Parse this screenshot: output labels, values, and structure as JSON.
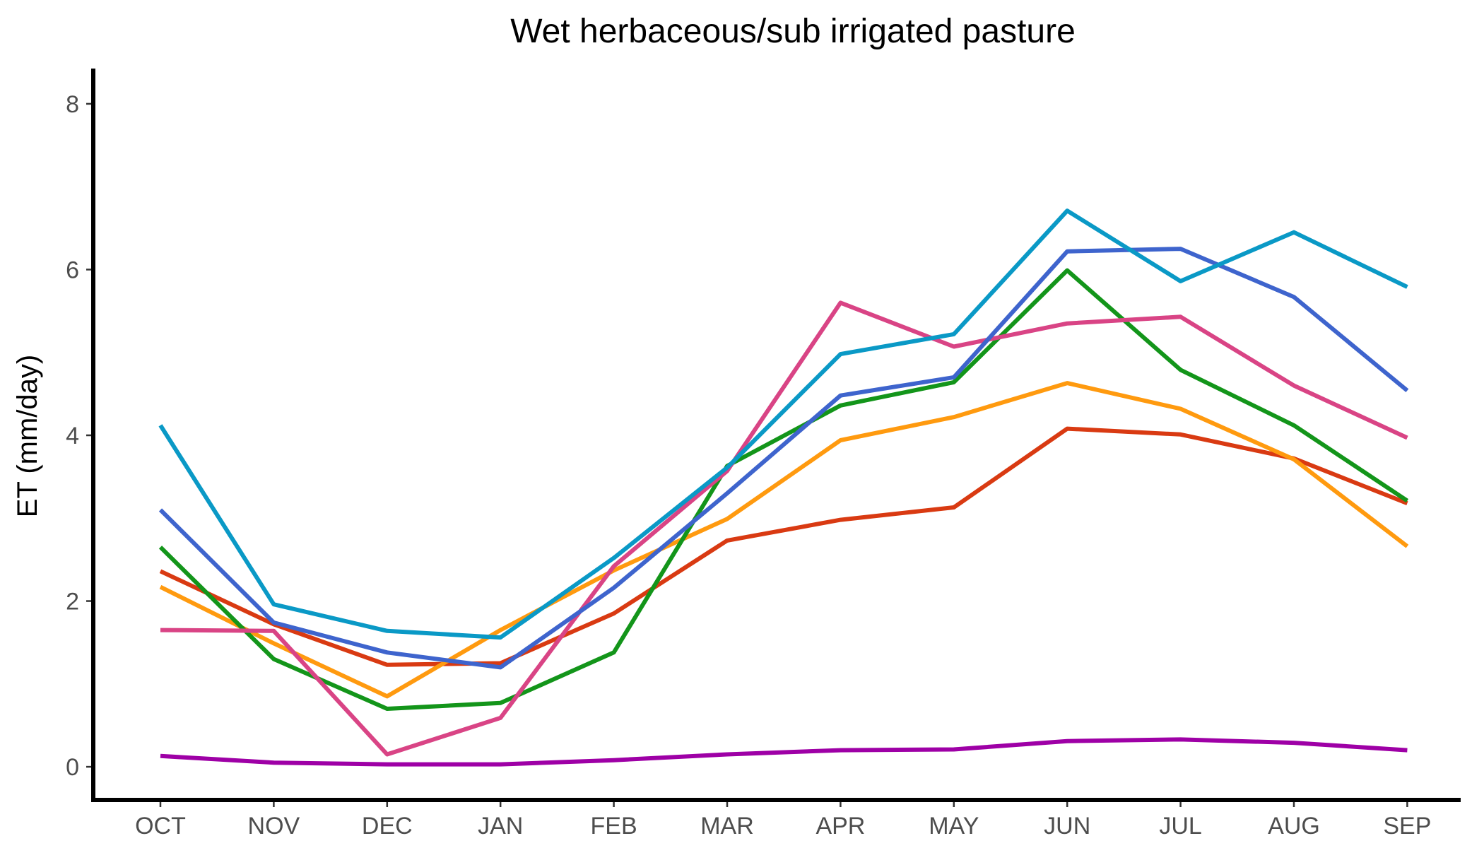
{
  "chart_data": {
    "type": "line",
    "title": "Wet herbaceous/sub irrigated pasture",
    "xlabel": "",
    "ylabel": "ET (mm/day)",
    "ylim": [
      -0.4,
      8.4
    ],
    "yticks": [
      0,
      2,
      4,
      6,
      8
    ],
    "categories": [
      "OCT",
      "NOV",
      "DEC",
      "JAN",
      "FEB",
      "MAR",
      "APR",
      "MAY",
      "JUN",
      "JUL",
      "AUG",
      "SEP"
    ],
    "grid": false,
    "legend": "none",
    "series": [
      {
        "color": "#9E00A6",
        "values": [
          0.13,
          0.05,
          0.03,
          0.03,
          0.08,
          0.15,
          0.2,
          0.21,
          0.31,
          0.33,
          0.29,
          0.2
        ]
      },
      {
        "color": "#D93A12",
        "values": [
          2.36,
          1.72,
          1.23,
          1.25,
          1.85,
          2.73,
          2.98,
          3.13,
          4.08,
          4.01,
          3.72,
          3.18
        ]
      },
      {
        "color": "#FF9A0F",
        "values": [
          2.17,
          1.49,
          0.85,
          1.65,
          2.37,
          2.99,
          3.94,
          4.22,
          4.63,
          4.32,
          3.71,
          2.66
        ]
      },
      {
        "color": "#13951A",
        "values": [
          2.65,
          1.3,
          0.7,
          0.77,
          1.38,
          3.63,
          4.36,
          4.64,
          5.99,
          4.79,
          4.12,
          3.21
        ]
      },
      {
        "color": "#D94485",
        "values": [
          1.65,
          1.64,
          0.15,
          0.59,
          2.42,
          3.57,
          5.6,
          5.07,
          5.35,
          5.43,
          4.6,
          3.97
        ]
      },
      {
        "color": "#3E64CD",
        "values": [
          3.1,
          1.74,
          1.38,
          1.2,
          2.16,
          3.3,
          4.48,
          4.7,
          6.22,
          6.25,
          5.67,
          4.54
        ]
      },
      {
        "color": "#0A99C6",
        "values": [
          4.12,
          1.96,
          1.64,
          1.56,
          2.52,
          3.61,
          4.98,
          5.22,
          6.71,
          5.86,
          6.45,
          5.79
        ]
      }
    ]
  }
}
